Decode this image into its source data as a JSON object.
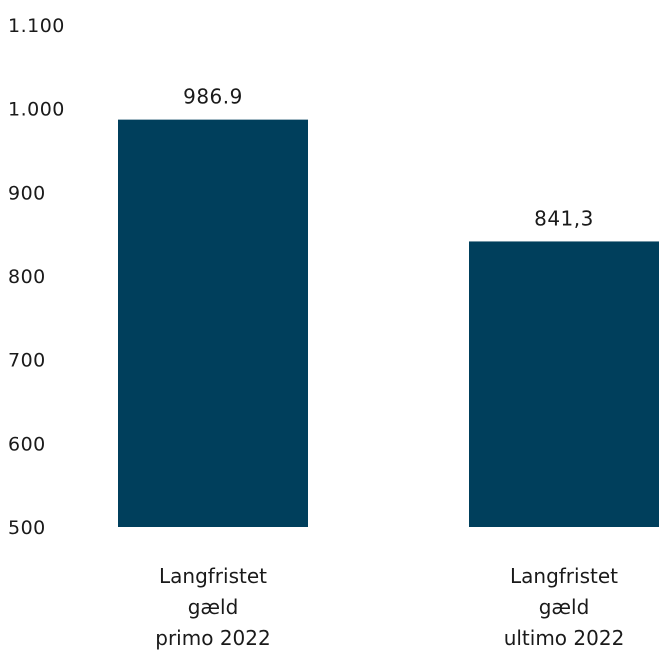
{
  "chart_data": {
    "type": "bar",
    "title": "",
    "xlabel": "",
    "ylabel": "",
    "ylim": [
      500,
      1100
    ],
    "yticks": [
      500,
      600,
      700,
      800,
      900,
      1000,
      1100
    ],
    "ytick_labels": [
      "500",
      "600",
      "700",
      "800",
      "900",
      "1.000",
      "1.100"
    ],
    "grid": false,
    "legend": "none",
    "bar_color": "#003f5c",
    "categories": [
      [
        "Langfristet",
        "gæld",
        "primo 2022"
      ],
      [
        "Langfristet",
        "gæld",
        "ultimo 2022"
      ]
    ],
    "values": [
      986.9,
      841.3
    ],
    "data_labels": [
      "986.9",
      "841,3"
    ]
  }
}
